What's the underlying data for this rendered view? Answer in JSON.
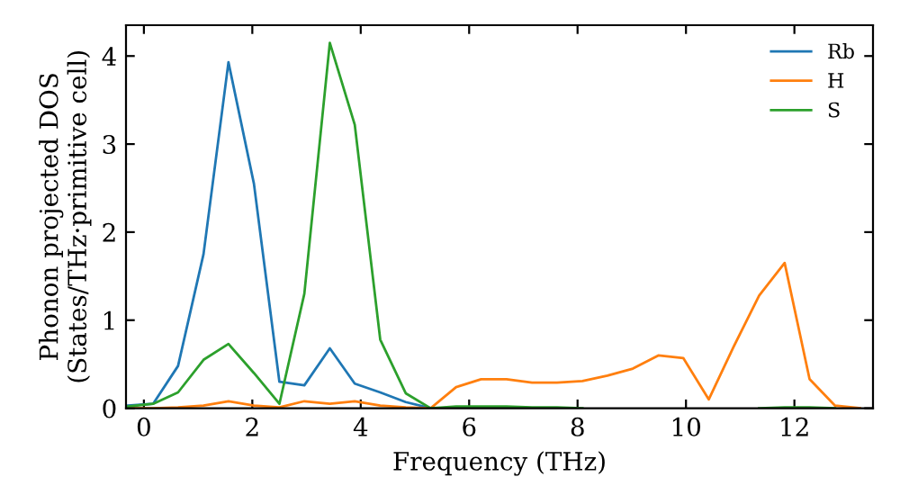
{
  "chart_data": {
    "type": "line",
    "xlabel": "Frequency (THz)",
    "ylabel": "Phonon projected DOS\n(States/THz·primitive cell)",
    "x": [
      -0.3,
      0.17,
      0.63,
      1.1,
      1.56,
      2.03,
      2.5,
      2.96,
      3.43,
      3.89,
      4.36,
      4.83,
      5.29,
      5.76,
      6.22,
      6.69,
      7.16,
      7.62,
      8.09,
      8.55,
      9.02,
      9.49,
      9.95,
      10.42,
      10.88,
      11.35,
      11.82,
      12.28,
      12.75,
      13.21
    ],
    "series": [
      {
        "name": "Rb",
        "color": "#1f77b4",
        "values": [
          0.03,
          0.05,
          0.48,
          1.75,
          3.93,
          2.55,
          0.3,
          0.26,
          0.68,
          0.28,
          0.18,
          0.07,
          0.0,
          null,
          null,
          null,
          null,
          null,
          null,
          null,
          null,
          null,
          null,
          null,
          null,
          null,
          null,
          null,
          null,
          null
        ]
      },
      {
        "name": "H",
        "color": "#ff7f0e",
        "values": [
          0.0,
          0.0,
          0.01,
          0.03,
          0.08,
          0.03,
          0.01,
          0.08,
          0.05,
          0.08,
          0.03,
          0.01,
          0.0,
          0.24,
          0.33,
          0.33,
          0.29,
          0.29,
          0.31,
          0.37,
          0.45,
          0.6,
          0.57,
          0.1,
          0.7,
          1.28,
          1.65,
          0.33,
          0.03,
          0.0
        ]
      },
      {
        "name": "S",
        "color": "#2ca02c",
        "values": [
          0.02,
          0.05,
          0.18,
          0.55,
          0.73,
          0.4,
          0.05,
          1.3,
          4.15,
          3.22,
          0.78,
          0.17,
          0.0,
          0.02,
          0.02,
          0.02,
          0.01,
          0.01,
          0.0,
          null,
          null,
          null,
          null,
          null,
          null,
          0.0,
          0.01,
          0.01,
          0.0,
          null
        ]
      }
    ],
    "xlim": [
      -0.33,
      13.45
    ],
    "ylim": [
      0,
      4.35
    ],
    "xticks": [
      0,
      2,
      4,
      6,
      8,
      10,
      12
    ],
    "yticks": [
      0,
      1,
      2,
      3,
      4
    ],
    "legend": "top right",
    "grid": false,
    "marker": "none",
    "line_style": "solid"
  }
}
